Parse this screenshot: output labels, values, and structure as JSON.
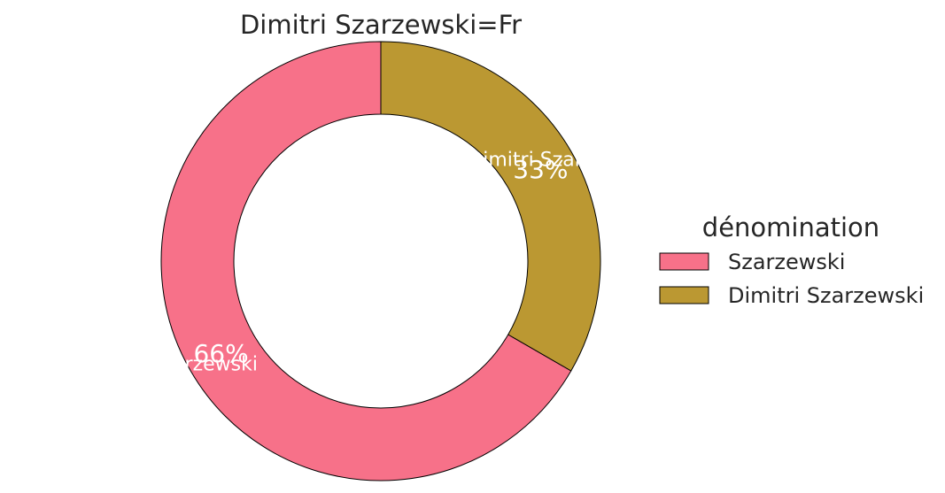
{
  "chart_data": {
    "type": "pie",
    "title": "Dimitri Szarzewski=Fr",
    "donut": true,
    "legend": {
      "title": "dénomination",
      "placement": "right"
    },
    "slices": [
      {
        "label": "Szarzewski",
        "value": 66,
        "pct_label": "66%",
        "color": "#f77189"
      },
      {
        "label": "Dimitri Szarzewski",
        "value": 33,
        "pct_label": "33%",
        "color": "#bb9832"
      }
    ]
  }
}
